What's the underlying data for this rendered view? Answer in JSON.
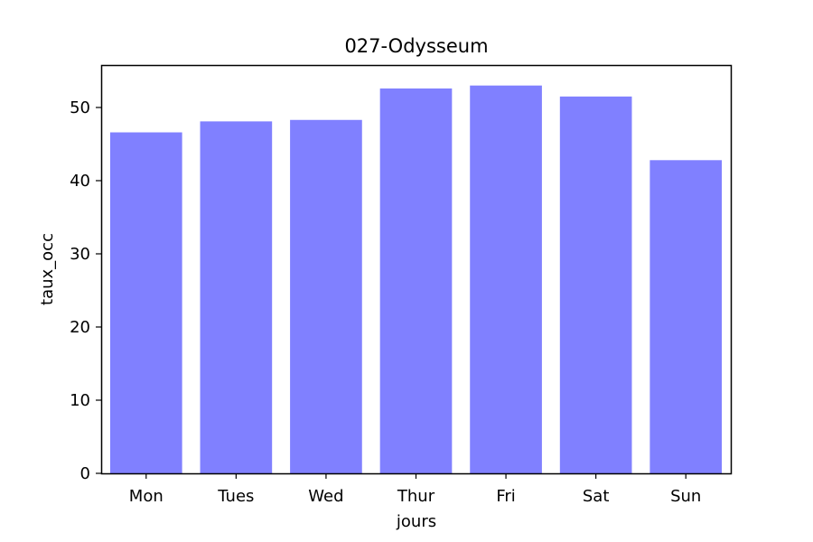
{
  "chart_data": {
    "type": "bar",
    "title": "027-Odysseum",
    "xlabel": "jours",
    "ylabel": "taux_occ",
    "categories": [
      "Mon",
      "Tues",
      "Wed",
      "Thur",
      "Fri",
      "Sat",
      "Sun"
    ],
    "values": [
      46.6,
      48.1,
      48.3,
      52.6,
      53.0,
      51.5,
      42.8
    ],
    "ylim": [
      0,
      55.8
    ],
    "yticks": [
      0,
      10,
      20,
      30,
      40,
      50
    ],
    "bar_color": "#8080ff",
    "grid": false,
    "legend": "none"
  }
}
